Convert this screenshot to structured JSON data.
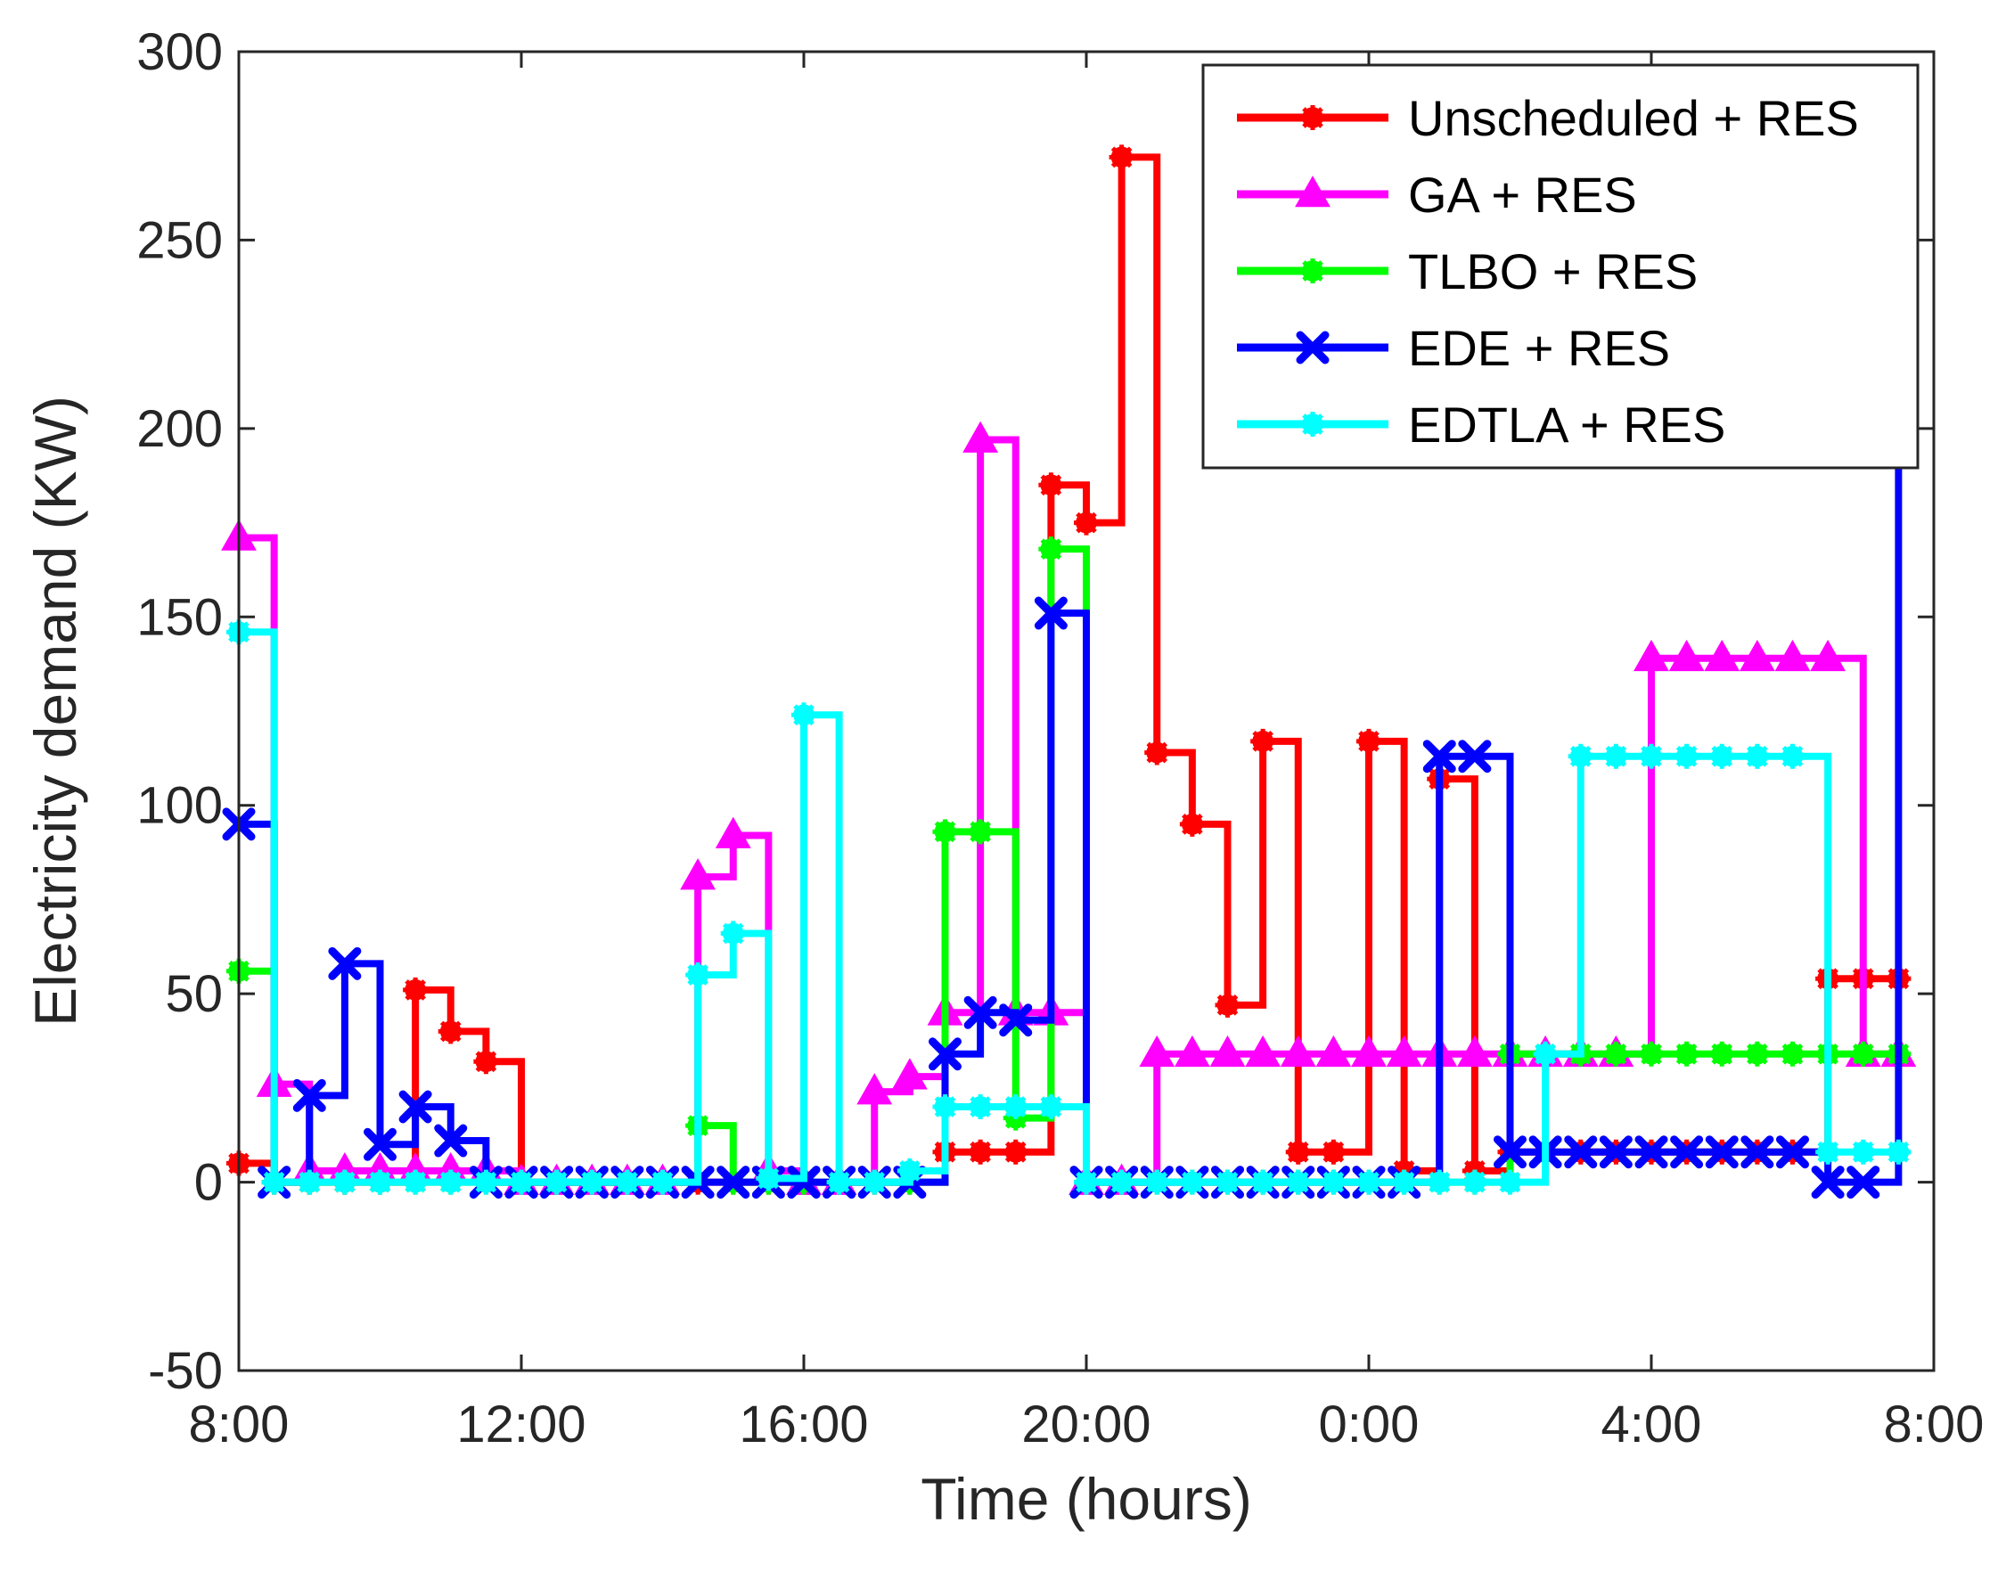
{
  "chart_data": {
    "type": "line",
    "step": "post",
    "title": "",
    "xlabel": "Time (hours)",
    "ylabel": "Electricity demand (KW)",
    "xlim": [
      8,
      32
    ],
    "ylim": [
      -50,
      300
    ],
    "xticks": [
      8,
      12,
      16,
      20,
      24,
      28,
      32
    ],
    "xtick_labels": [
      "8:00",
      "12:00",
      "16:00",
      "20:00",
      "0:00",
      "4:00",
      "8:00"
    ],
    "yticks": [
      -50,
      0,
      50,
      100,
      150,
      200,
      250,
      300
    ],
    "ytick_labels": [
      "-50",
      "0",
      "50",
      "100",
      "150",
      "200",
      "250",
      "300"
    ],
    "grid": false,
    "legend_position": "top-right",
    "x_half_hours": [
      8.0,
      8.5,
      9.0,
      9.5,
      10.0,
      10.5,
      11.0,
      11.5,
      12.0,
      12.5,
      13.0,
      13.5,
      14.0,
      14.5,
      15.0,
      15.5,
      16.0,
      16.5,
      17.0,
      17.5,
      18.0,
      18.5,
      19.0,
      19.5,
      20.0,
      20.5,
      21.0,
      21.5,
      22.0,
      22.5,
      23.0,
      23.5,
      24.0,
      24.5,
      25.0,
      25.5,
      26.0,
      26.5,
      27.0,
      27.5,
      28.0,
      28.5,
      29.0,
      29.5,
      30.0,
      30.5,
      31.0,
      31.5
    ],
    "series": [
      {
        "name": "Unscheduled + RES",
        "color": "#ff0000",
        "marker": "asterisk",
        "values": [
          5,
          0,
          0,
          0,
          0,
          51,
          40,
          32,
          0,
          0,
          0,
          0,
          0,
          0,
          0,
          0,
          0,
          0,
          0,
          0,
          8,
          8,
          8,
          185,
          175,
          272,
          114,
          95,
          47,
          117,
          8,
          8,
          117,
          3,
          107,
          3,
          8,
          8,
          8,
          8,
          8,
          8,
          8,
          8,
          8,
          54,
          54,
          54
        ]
      },
      {
        "name": "GA + RES",
        "color": "#ff00ff",
        "marker": "triangle",
        "values": [
          171,
          26,
          3,
          3,
          3,
          3,
          3,
          3,
          0,
          0,
          0,
          0,
          0,
          81,
          92,
          3,
          0,
          0,
          24,
          28,
          45,
          197,
          45,
          45,
          0,
          0,
          34,
          34,
          34,
          34,
          34,
          34,
          34,
          34,
          34,
          34,
          34,
          34,
          34,
          34,
          139,
          139,
          139,
          139,
          139,
          139,
          34,
          34
        ]
      },
      {
        "name": "TLBO + RES",
        "color": "#00ff00",
        "marker": "asterisk",
        "values": [
          56,
          0,
          0,
          0,
          0,
          0,
          0,
          0,
          0,
          0,
          0,
          0,
          0,
          15,
          0,
          0,
          0,
          0,
          0,
          0,
          93,
          93,
          17,
          168,
          0,
          0,
          0,
          0,
          0,
          0,
          0,
          0,
          0,
          0,
          0,
          0,
          34,
          34,
          34,
          34,
          34,
          34,
          34,
          34,
          34,
          34,
          34,
          34
        ]
      },
      {
        "name": "EDE + RES",
        "color": "#0000ff",
        "marker": "cross",
        "values": [
          95,
          0,
          23,
          58,
          10,
          20,
          11,
          0,
          0,
          0,
          0,
          0,
          0,
          0,
          0,
          0,
          0,
          0,
          0,
          0,
          34,
          45,
          43,
          151,
          0,
          0,
          0,
          0,
          0,
          0,
          0,
          0,
          0,
          0,
          113,
          113,
          8,
          8,
          8,
          8,
          8,
          8,
          8,
          8,
          8,
          0,
          0,
          195
        ]
      },
      {
        "name": "EDTLA + RES",
        "color": "#00ffff",
        "marker": "asterisk",
        "values": [
          146,
          0,
          0,
          0,
          0,
          0,
          0,
          0,
          0,
          0,
          0,
          0,
          0,
          55,
          66,
          1,
          124,
          0,
          0,
          3,
          20,
          20,
          20,
          20,
          0,
          0,
          0,
          0,
          0,
          0,
          0,
          0,
          0,
          0,
          0,
          0,
          0,
          34,
          113,
          113,
          113,
          113,
          113,
          113,
          113,
          8,
          8,
          8
        ]
      }
    ]
  }
}
